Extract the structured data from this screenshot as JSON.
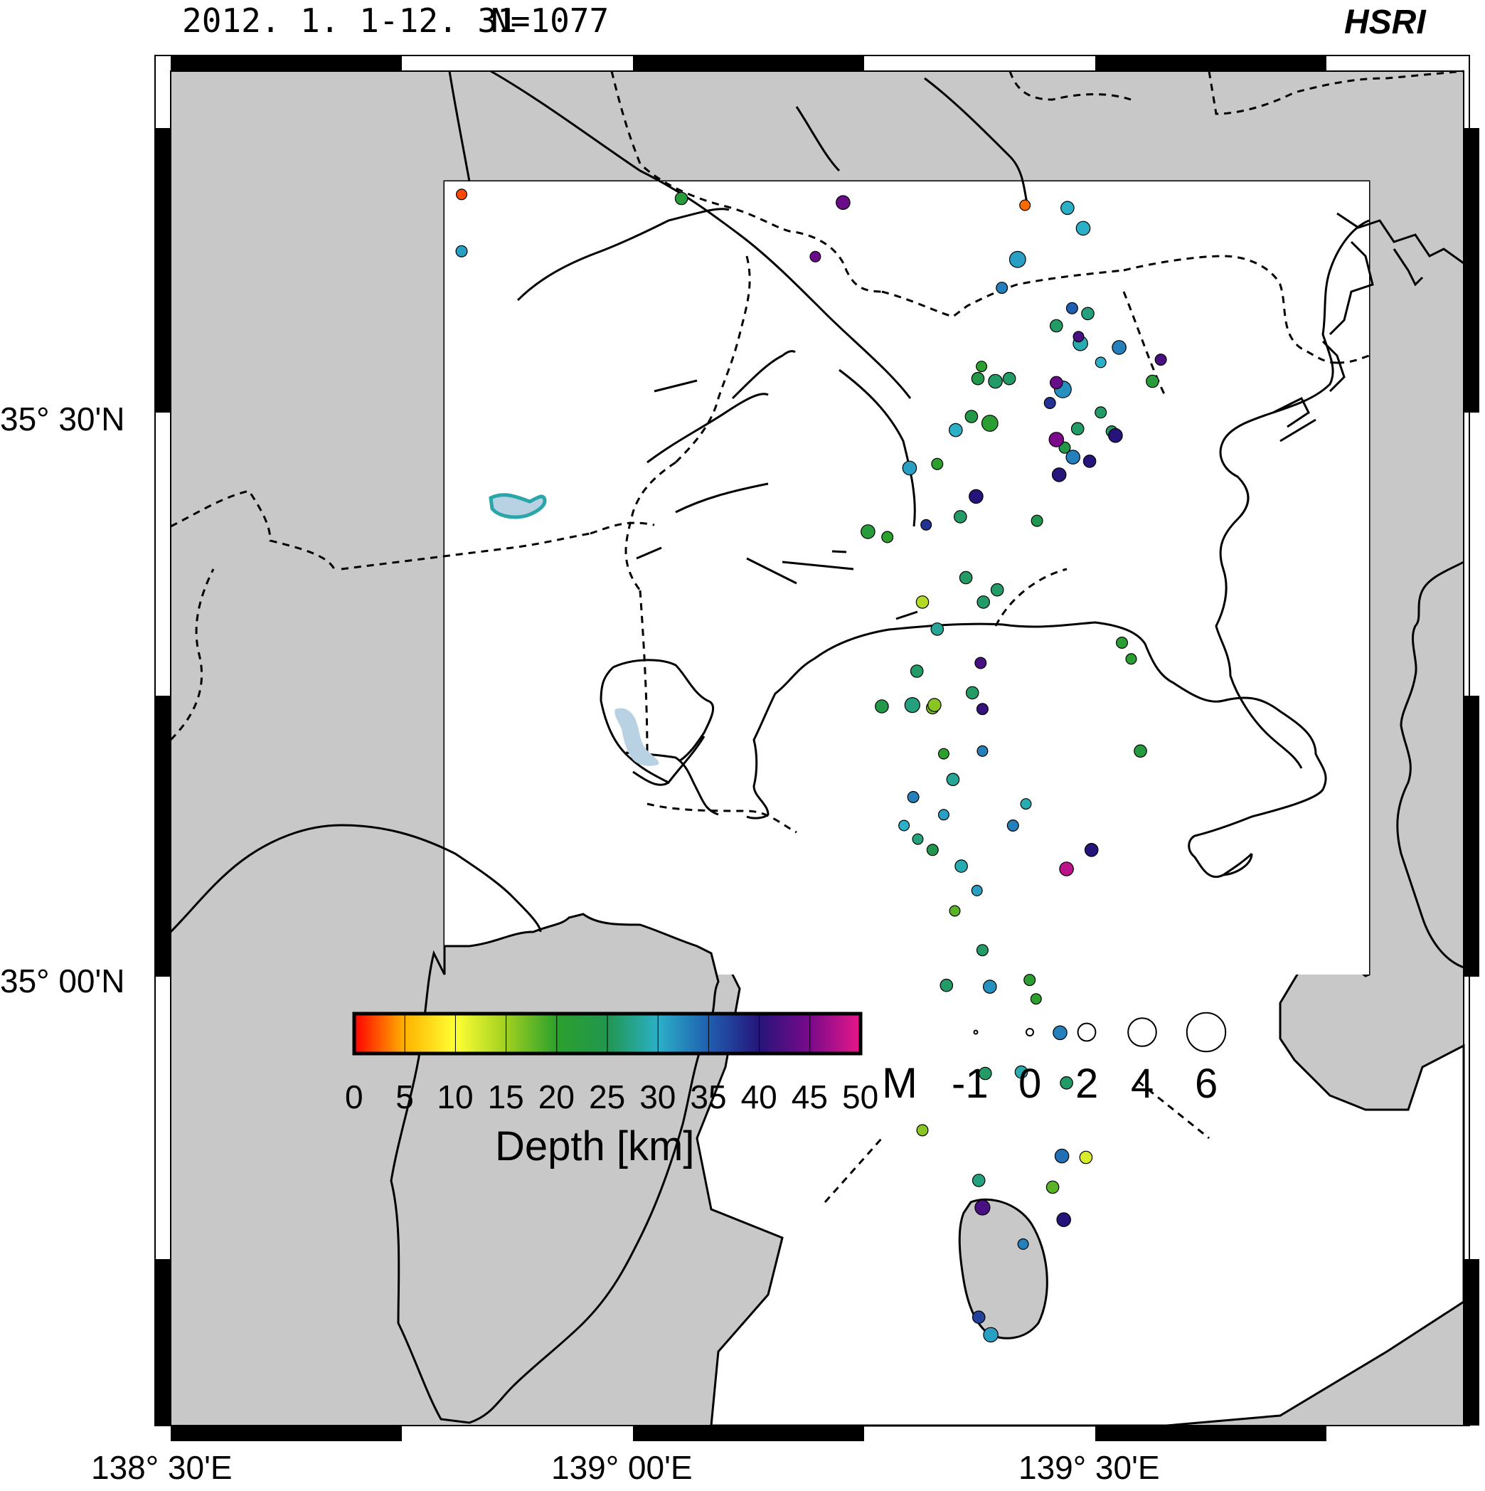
{
  "header": {
    "period": "2012. 1. 1-12. 31",
    "count": "N=1077",
    "org": "HSRI"
  },
  "axes": {
    "lat_labels": [
      "35° 30'N",
      "35° 00'N"
    ],
    "lon_labels": [
      "138° 30'E",
      "139° 00'E",
      "139° 30'E"
    ]
  },
  "colors": {
    "land": "#c8c8c8",
    "sea": "#ffffff",
    "lake": "#b8d2e4"
  },
  "legend": {
    "depth_title": "Depth [km]",
    "depth_ticks": [
      "0",
      "5",
      "10",
      "15",
      "20",
      "25",
      "30",
      "35",
      "40",
      "45",
      "50"
    ],
    "mag_title": "M",
    "mag_labels": [
      "-1",
      "0",
      "2",
      "4",
      "6"
    ],
    "mag_values": [
      -1,
      0,
      2,
      4,
      6
    ]
  },
  "chart_data": {
    "type": "scatter",
    "x_name": "longitude (°E)",
    "y_name": "latitude (°N)",
    "color_name": "depth (km)",
    "size_name": "magnitude",
    "xlim": [
      138.5,
      139.9
    ],
    "ylim": [
      34.75,
      35.75
    ],
    "events": [
      [
        138.815,
        35.617,
        31,
        0.5
      ],
      [
        139.053,
        35.656,
        22,
        0.8
      ],
      [
        139.228,
        35.653,
        44,
        1.2
      ],
      [
        139.198,
        35.613,
        44,
        0.3
      ],
      [
        138.815,
        35.659,
        2,
        0.3
      ],
      [
        139.425,
        35.651,
        3,
        0.3
      ],
      [
        139.417,
        35.611,
        31,
        1.8
      ],
      [
        139.471,
        35.649,
        30,
        1.0
      ],
      [
        139.488,
        35.634,
        30,
        1.2
      ],
      [
        139.4,
        35.59,
        33,
        0.5
      ],
      [
        139.459,
        35.562,
        26,
        0.8
      ],
      [
        139.485,
        35.549,
        29,
        1.4
      ],
      [
        139.466,
        35.515,
        32,
        2.0
      ],
      [
        139.393,
        35.521,
        26,
        1.2
      ],
      [
        139.408,
        35.523,
        26,
        0.8
      ],
      [
        139.374,
        35.523,
        24,
        0.8
      ],
      [
        139.367,
        35.495,
        24,
        0.8
      ],
      [
        139.378,
        35.532,
        20,
        0.3
      ],
      [
        139.468,
        35.472,
        24,
        0.5
      ],
      [
        139.482,
        35.486,
        26,
        0.8
      ],
      [
        139.493,
        35.571,
        27,
        0.8
      ],
      [
        139.563,
        35.521,
        22,
        0.8
      ],
      [
        139.507,
        35.535,
        30,
        0.3
      ],
      [
        139.572,
        35.537,
        42,
        0.5
      ],
      [
        139.477,
        35.465,
        33,
        1.2
      ],
      [
        139.519,
        35.484,
        26,
        0.5
      ],
      [
        139.462,
        35.452,
        40,
        1.2
      ],
      [
        139.523,
        35.481,
        40,
        1.2
      ],
      [
        139.459,
        35.478,
        45,
        1.4
      ],
      [
        139.527,
        35.546,
        33,
        1.2
      ],
      [
        139.476,
        35.575,
        35,
        0.5
      ],
      [
        139.483,
        35.554,
        42,
        0.3
      ],
      [
        139.459,
        35.52,
        44,
        0.8
      ],
      [
        139.452,
        35.505,
        38,
        0.5
      ],
      [
        139.507,
        35.498,
        26,
        0.5
      ],
      [
        139.387,
        35.49,
        21,
        1.8
      ],
      [
        139.495,
        35.462,
        40,
        0.8
      ],
      [
        139.372,
        35.436,
        40,
        1.2
      ],
      [
        139.438,
        35.418,
        25,
        0.5
      ],
      [
        139.355,
        35.421,
        26,
        0.8
      ],
      [
        139.3,
        35.457,
        31,
        1.2
      ],
      [
        139.318,
        35.415,
        38,
        0.3
      ],
      [
        139.361,
        35.376,
        26,
        0.8
      ],
      [
        139.33,
        35.338,
        28,
        0.8
      ],
      [
        139.308,
        35.307,
        26,
        0.8
      ],
      [
        139.27,
        35.281,
        24,
        1.0
      ],
      [
        139.303,
        35.282,
        27,
        1.5
      ],
      [
        139.377,
        35.313,
        42,
        0.5
      ],
      [
        139.368,
        35.291,
        26,
        0.8
      ],
      [
        139.379,
        35.279,
        41,
        0.5
      ],
      [
        139.379,
        35.248,
        33,
        0.3
      ],
      [
        139.347,
        35.227,
        28,
        0.8
      ],
      [
        139.337,
        35.201,
        31,
        0.3
      ],
      [
        139.356,
        35.163,
        29,
        0.8
      ],
      [
        139.373,
        35.145,
        31,
        0.3
      ],
      [
        139.349,
        35.13,
        18,
        0.3
      ],
      [
        139.47,
        35.161,
        48,
        1.2
      ],
      [
        139.34,
        35.075,
        26,
        0.8
      ],
      [
        139.47,
        35.003,
        26,
        0.8
      ],
      [
        139.55,
        35.248,
        23,
        0.8
      ],
      [
        139.54,
        35.316,
        21,
        0.3
      ],
      [
        139.53,
        35.328,
        21,
        0.5
      ],
      [
        139.395,
        35.367,
        26,
        0.8
      ],
      [
        139.38,
        35.358,
        26,
        0.8
      ],
      [
        139.33,
        35.46,
        20,
        0.5
      ],
      [
        139.35,
        35.485,
        30,
        1.0
      ],
      [
        139.255,
        35.41,
        22,
        1.2
      ],
      [
        139.276,
        35.406,
        20,
        0.5
      ],
      [
        139.314,
        35.358,
        14,
        0.8
      ],
      [
        139.325,
        35.28,
        17,
        0.8
      ],
      [
        139.327,
        35.282,
        16,
        1.0
      ],
      [
        139.337,
        35.246,
        20,
        0.3
      ],
      [
        139.412,
        35.193,
        33,
        0.5
      ],
      [
        139.426,
        35.209,
        29,
        0.3
      ],
      [
        139.497,
        35.175,
        40,
        1.0
      ],
      [
        139.463,
        35.04,
        33,
        1.2
      ],
      [
        139.382,
        35.01,
        26,
        0.8
      ],
      [
        139.465,
        34.949,
        34,
        1.2
      ],
      [
        139.379,
        34.911,
        42,
        1.5
      ],
      [
        139.388,
        34.817,
        31,
        1.4
      ],
      [
        139.375,
        34.83,
        37,
        0.8
      ],
      [
        139.314,
        34.968,
        16,
        0.5
      ],
      [
        139.375,
        34.931,
        27,
        0.8
      ],
      [
        139.379,
        35.101,
        26,
        0.5
      ],
      [
        139.325,
        35.175,
        25,
        0.5
      ],
      [
        139.294,
        35.193,
        30,
        0.3
      ],
      [
        139.304,
        35.214,
        33,
        0.5
      ],
      [
        139.309,
        35.183,
        27,
        0.3
      ],
      [
        139.387,
        35.074,
        32,
        1.0
      ],
      [
        139.43,
        35.079,
        21,
        0.5
      ],
      [
        139.421,
        35.011,
        29,
        0.8
      ],
      [
        139.437,
        35.065,
        20,
        0.3
      ],
      [
        139.467,
        34.902,
        40,
        1.2
      ],
      [
        139.491,
        34.948,
        12,
        0.8
      ],
      [
        139.455,
        34.926,
        18,
        0.8
      ],
      [
        139.423,
        34.884,
        33,
        0.3
      ]
    ]
  }
}
